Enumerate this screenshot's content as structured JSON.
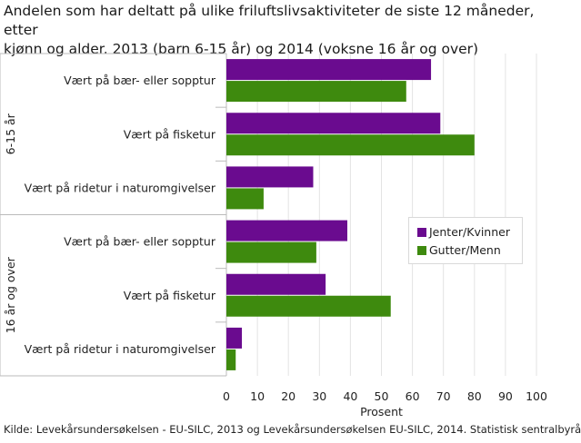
{
  "title_lines": [
    "Andelen som har deltatt på ulike friluftslivsaktiviteter de siste 12 måneder, etter",
    "kjønn og alder. 2013 (barn 6-15 år) og 2014 (voksne 16 år og over)"
  ],
  "source": "Kilde: Levekårsundersøkelsen - EU-SILC, 2013 og Levekårsundersøkelsen EU-SILC, 2014. Statistisk sentralbyrå",
  "colors": {
    "series_1": "#6a0b8f",
    "series_2": "#3e8a0e",
    "grid": "#e3e3e3",
    "axis": "#bbbbbb"
  },
  "chart_data": {
    "type": "bar",
    "orientation": "horizontal",
    "groups": [
      {
        "label": "6-15 år",
        "categories": [
          "Vært på bær- eller sopptur",
          "Vært på fisketur",
          "Vært på ridetur i naturomgivelser"
        ]
      },
      {
        "label": "16 år og over",
        "categories": [
          "Vært på bær- eller sopptur",
          "Vært på fisketur",
          "Vært på ridetur i naturomgivelser"
        ]
      }
    ],
    "series": [
      {
        "name": "Jenter/Kvinner",
        "values": [
          66,
          69,
          28,
          39,
          32,
          5
        ]
      },
      {
        "name": "Gutter/Menn",
        "values": [
          58,
          80,
          12,
          29,
          53,
          3
        ]
      }
    ],
    "xlabel": "Prosent",
    "xlim": [
      0,
      100
    ],
    "xticks": [
      0,
      10,
      20,
      30,
      40,
      50,
      60,
      70,
      80,
      90,
      100
    ],
    "grid": true,
    "legend_position": "right"
  }
}
